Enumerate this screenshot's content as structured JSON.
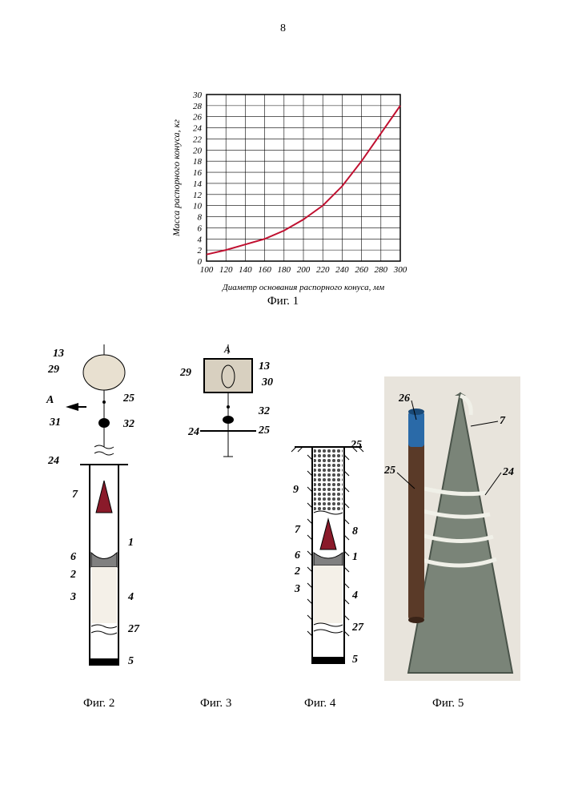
{
  "page_number": "8",
  "chart": {
    "type": "line",
    "title_fontsize": 12,
    "xlabel": "Диаметр основания  распорного конуса, мм",
    "ylabel": "Масса распорного конуса, кг",
    "label_fontsize": 12,
    "label_fontstyle": "italic",
    "xlim": [
      100,
      300
    ],
    "ylim": [
      0,
      30
    ],
    "xtick_step": 20,
    "ytick_step": 2,
    "xtick_labels": [
      "100",
      "120",
      "140",
      "160",
      "180",
      "200",
      "220",
      "240",
      "260",
      "280",
      "300"
    ],
    "ytick_labels": [
      "0",
      "2",
      "4",
      "6",
      "8",
      "10",
      "12",
      "14",
      "16",
      "18",
      "20",
      "22",
      "24",
      "26",
      "28",
      "30"
    ],
    "line_color": "#c01030",
    "line_width": 2,
    "grid_color": "#000000",
    "background_color": "#ffffff",
    "data_points": [
      [
        100,
        1.2
      ],
      [
        120,
        2.0
      ],
      [
        140,
        3.0
      ],
      [
        160,
        4.0
      ],
      [
        180,
        5.5
      ],
      [
        200,
        7.5
      ],
      [
        220,
        10.0
      ],
      [
        240,
        13.5
      ],
      [
        260,
        18.0
      ],
      [
        280,
        23.0
      ],
      [
        300,
        28.0
      ]
    ]
  },
  "fig1_caption": "Фиг. 1",
  "fig2_caption": "Фиг. 2",
  "fig3_caption": "Фиг. 3",
  "fig4_caption": "Фиг. 4",
  "fig5_caption": "Фиг. 5",
  "fig2": {
    "type": "diagram",
    "callouts": [
      "13",
      "29",
      "A",
      "31",
      "25",
      "32",
      "24",
      "7",
      "1",
      "6",
      "2",
      "3",
      "4",
      "27",
      "5"
    ],
    "cone_fill": "#8a1a2a",
    "body_fill": "#ffffff",
    "plug_fill": "#808080",
    "outline": "#000000",
    "arrow_label": "A"
  },
  "fig3": {
    "type": "diagram",
    "callouts": [
      "A",
      "29",
      "13",
      "30",
      "32",
      "25",
      "24"
    ],
    "box_fill": "#d8d0c0",
    "outline": "#000000"
  },
  "fig4": {
    "type": "diagram",
    "callouts": [
      "25",
      "9",
      "7",
      "8",
      "6",
      "1",
      "2",
      "3",
      "4",
      "27",
      "5"
    ],
    "cone_fill": "#8a1a2a",
    "body_fill": "#ffffff",
    "plug_fill": "#808080",
    "hatch_color": "#000000",
    "crushed_fill": "#505050"
  },
  "fig5": {
    "type": "photo-like",
    "callouts": [
      "26",
      "25",
      "7",
      "24"
    ],
    "cone_color": "#7a8478",
    "tube_color": "#5a3a28",
    "tube_top_color": "#2a6aa8",
    "rope_color": "#f0f0e8",
    "background": "#e8e4dc"
  }
}
